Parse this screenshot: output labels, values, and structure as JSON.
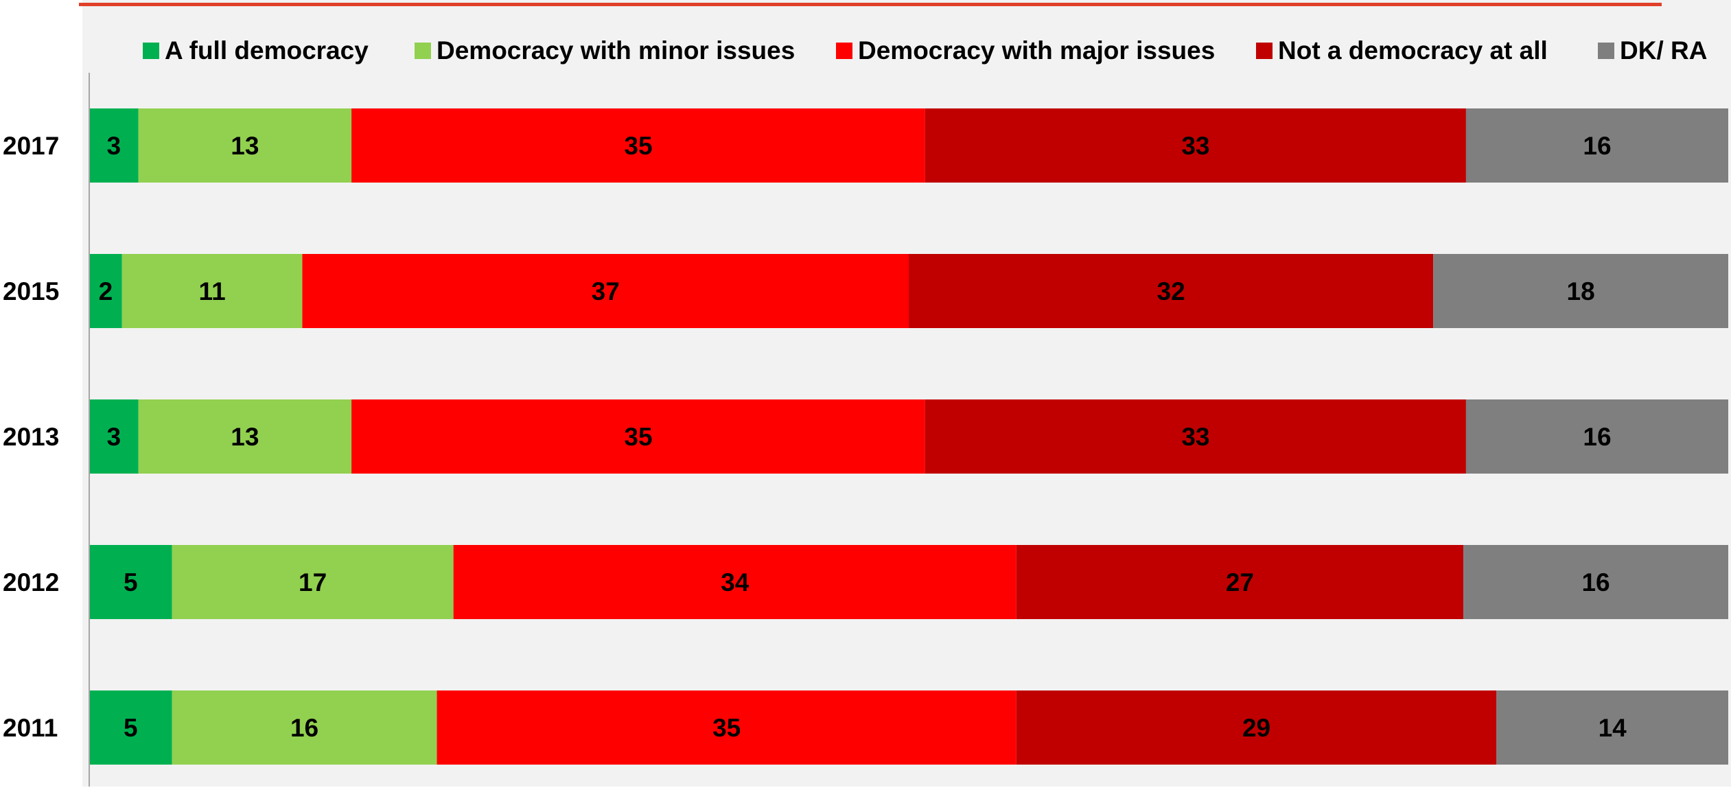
{
  "chart_data": {
    "type": "bar",
    "orientation": "horizontal",
    "stacked": true,
    "title": "",
    "xlabel": "",
    "ylabel": "",
    "legend_position": "top",
    "grid": false,
    "categories": [
      "2017",
      "2015",
      "2013",
      "2012",
      "2011"
    ],
    "series": [
      {
        "name": "A full democracy",
        "color": "#00b050",
        "values": [
          3,
          2,
          3,
          5,
          5
        ]
      },
      {
        "name": "Democracy with minor issues",
        "color": "#92d050",
        "values": [
          13,
          11,
          13,
          17,
          16
        ]
      },
      {
        "name": "Democracy with major issues",
        "color": "#ff0000",
        "values": [
          35,
          37,
          35,
          34,
          35
        ]
      },
      {
        "name": "Not a democracy at all",
        "color": "#c00000",
        "values": [
          33,
          32,
          33,
          27,
          29
        ]
      },
      {
        "name": "DK/ RA",
        "color": "#7f7f7f",
        "values": [
          16,
          18,
          16,
          16,
          14
        ]
      }
    ]
  },
  "colors": {
    "plot_background": "#f2f2f2",
    "accent_line": "#e0402a",
    "axis": "#a6a6a6",
    "label_text": "#000000"
  }
}
